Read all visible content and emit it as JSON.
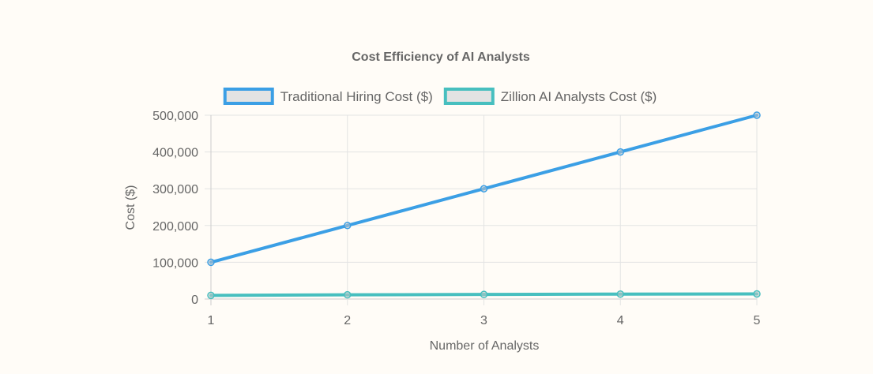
{
  "chart_data": {
    "type": "line",
    "title": "Cost Efficiency of AI Analysts",
    "xlabel": "Number of Analysts",
    "ylabel": "Cost ($)",
    "x": [
      1,
      2,
      3,
      4,
      5
    ],
    "x_tick_labels": [
      "1",
      "2",
      "3",
      "4",
      "5"
    ],
    "ylim": [
      0,
      500000
    ],
    "y_ticks": [
      0,
      100000,
      200000,
      300000,
      400000,
      500000
    ],
    "y_tick_labels": [
      "0",
      "100,000",
      "200,000",
      "300,000",
      "400,000",
      "500,000"
    ],
    "grid": true,
    "legend_position": "top",
    "series": [
      {
        "name": "Traditional Hiring Cost ($)",
        "values": [
          100000,
          200000,
          300000,
          400000,
          500000
        ],
        "color": "#3b9fe5"
      },
      {
        "name": "Zillion AI Analysts Cost ($)",
        "values": [
          10000,
          11500,
          12500,
          13500,
          14000
        ],
        "color": "#47bfbf"
      }
    ]
  },
  "colors": {
    "background": "#fffcf7",
    "grid": "#e3e3e3",
    "axis": "#cccccc",
    "text": "#666666",
    "legend_fill": "#e3e3e3"
  }
}
